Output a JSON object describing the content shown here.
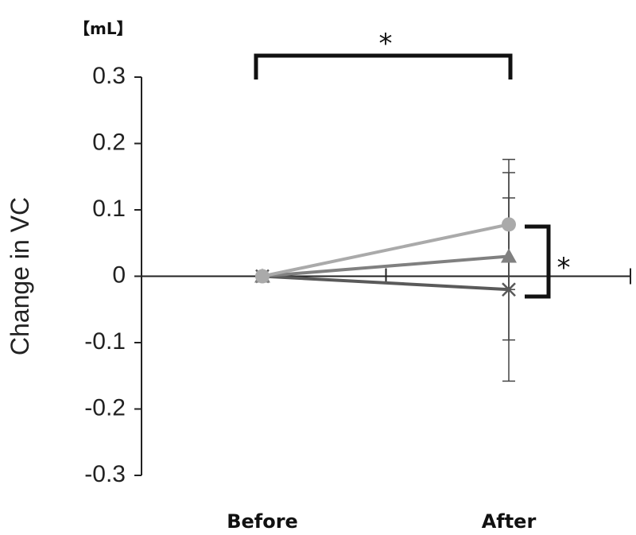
{
  "chart_data": {
    "type": "line",
    "title": "",
    "unit_label": "【mL】",
    "xlabel": "",
    "ylabel": "Change in VC",
    "categories": [
      "Before",
      "After"
    ],
    "ylim": [
      -0.3,
      0.3
    ],
    "yticks": [
      0.3,
      0.2,
      0.1,
      0,
      -0.1,
      -0.2,
      -0.3
    ],
    "ytick_labels": [
      "0.3",
      "0.2",
      "0.1",
      "0",
      "-0.1",
      "-0.2",
      "-0.3"
    ],
    "grid": false,
    "series": [
      {
        "marker": "circle",
        "color": "#aaaaaa",
        "values": [
          0,
          0.078
        ],
        "error": [
          0,
          0.098
        ]
      },
      {
        "marker": "triangle",
        "color": "#808080",
        "values": [
          0,
          0.03
        ],
        "error": [
          0,
          0.126
        ]
      },
      {
        "marker": "cross",
        "color": "#5a5a5a",
        "values": [
          0,
          -0.02
        ],
        "error": [
          0,
          0.138
        ]
      }
    ],
    "significance": [
      {
        "label": "*",
        "between": "Before-After"
      },
      {
        "label": "*",
        "between": "series-at-After"
      }
    ]
  }
}
